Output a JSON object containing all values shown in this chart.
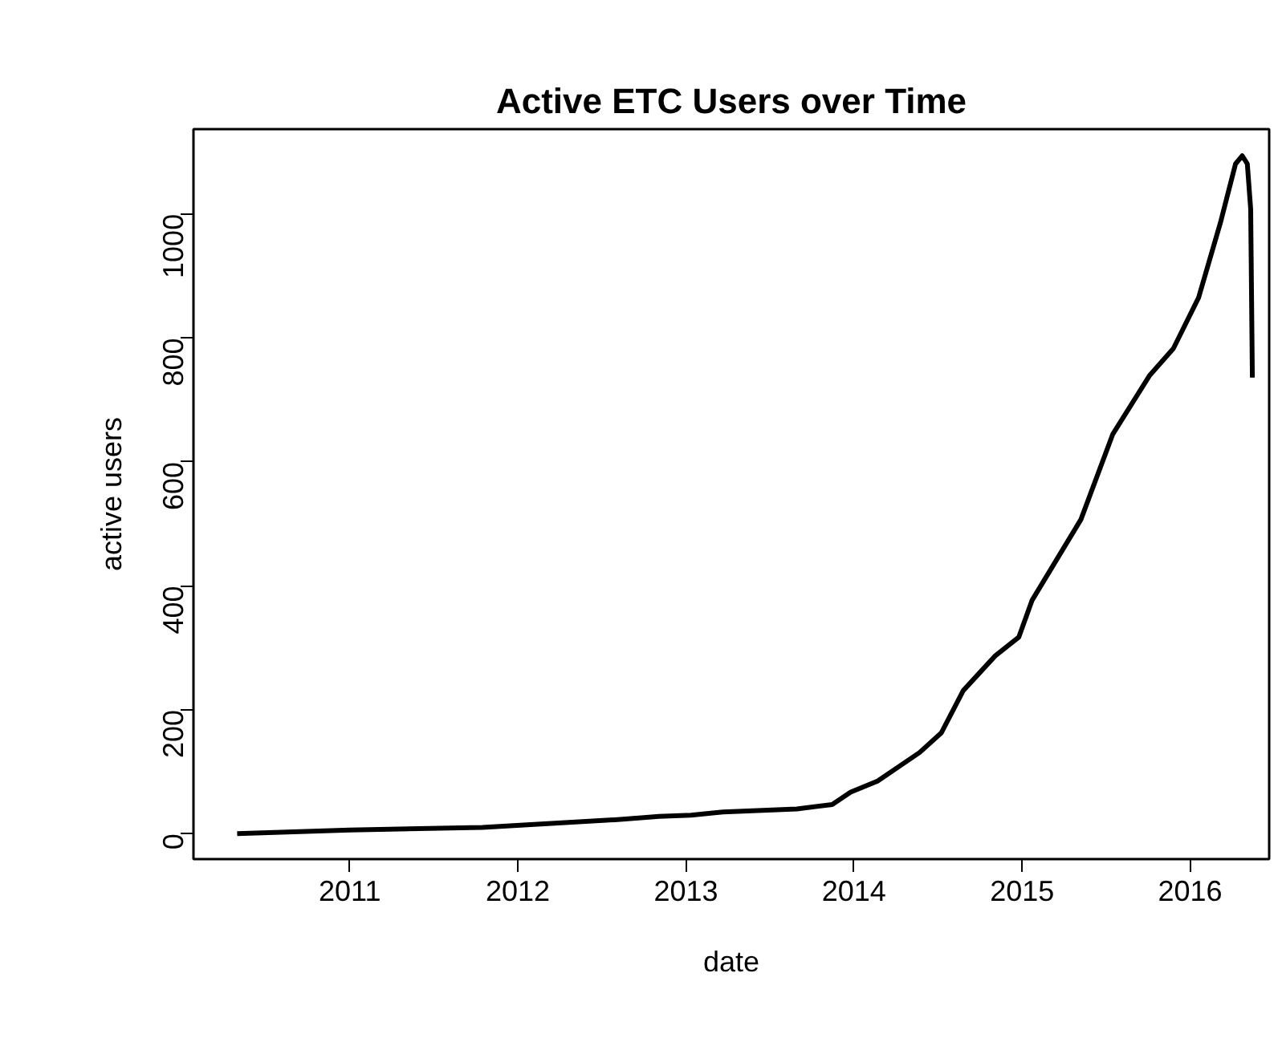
{
  "chart_data": {
    "type": "line",
    "title": "Active ETC Users over Time",
    "xlabel": "date",
    "ylabel": "active users",
    "x": [
      2010.33,
      2011.0,
      2011.79,
      2012.61,
      2012.84,
      2013.03,
      2013.22,
      2013.66,
      2013.87,
      2013.98,
      2014.14,
      2014.39,
      2014.52,
      2014.65,
      2014.84,
      2014.98,
      2015.06,
      2015.35,
      2015.54,
      2015.76,
      2015.9,
      2016.05,
      2016.18,
      2016.27,
      2016.31,
      2016.34,
      2016.36,
      2016.37
    ],
    "series": [
      {
        "color": "#000000",
        "values": [
          0,
          6,
          10,
          23,
          28,
          30,
          35,
          40,
          47,
          67,
          85,
          131,
          163,
          231,
          287,
          317,
          377,
          507,
          645,
          740,
          783,
          865,
          986,
          1081,
          1094,
          1081,
          1008,
          736
        ]
      }
    ],
    "xlim": [
      2010.07,
      2016.47
    ],
    "ylim": [
      -41,
      1137
    ],
    "xticks": [
      2011,
      2012,
      2013,
      2014,
      2015,
      2016
    ],
    "yticks": [
      0,
      200,
      400,
      600,
      800,
      1000
    ],
    "grid": false,
    "marker": "none",
    "line_style": "solid"
  }
}
